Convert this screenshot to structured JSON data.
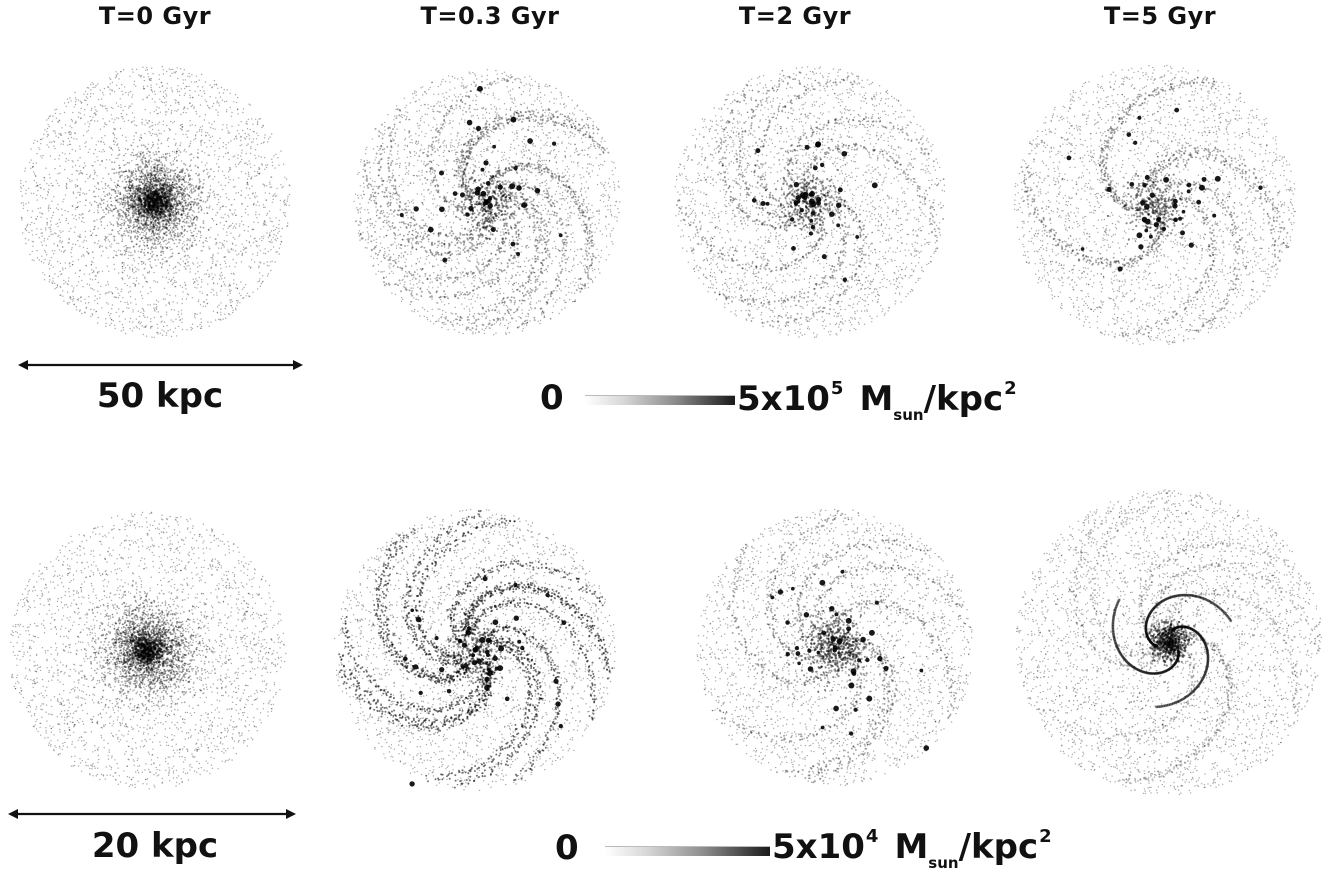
{
  "column_titles": [
    "T=0 Gyr",
    "T=0.3 Gyr",
    "T=2 Gyr",
    "T=5 Gyr"
  ],
  "rows": [
    {
      "scale_label": "50 kpc",
      "colorbar": {
        "min_label": "0",
        "max_value": "5x10",
        "max_exponent": "5",
        "unit_main": "M",
        "unit_sub": "sun",
        "unit_rest": "/kpc",
        "unit_exponent": "2"
      },
      "panels": [
        {
          "name": "T=0 Gyr",
          "style": "smooth"
        },
        {
          "name": "T=0.3 Gyr",
          "style": "spiral-clumpy"
        },
        {
          "name": "T=2 Gyr",
          "style": "spiral-central"
        },
        {
          "name": "T=5 Gyr",
          "style": "spiral-arms"
        }
      ]
    },
    {
      "scale_label": "20 kpc",
      "colorbar": {
        "min_label": "0",
        "max_value": "5x10",
        "max_exponent": "4",
        "unit_main": "M",
        "unit_sub": "sun",
        "unit_rest": "/kpc",
        "unit_exponent": "2"
      },
      "panels": [
        {
          "name": "T=0 Gyr",
          "style": "smooth"
        },
        {
          "name": "T=0.3 Gyr",
          "style": "spiral-strong"
        },
        {
          "name": "T=2 Gyr",
          "style": "central-clump"
        },
        {
          "name": "T=5 Gyr",
          "style": "tight-core"
        }
      ]
    }
  ]
}
